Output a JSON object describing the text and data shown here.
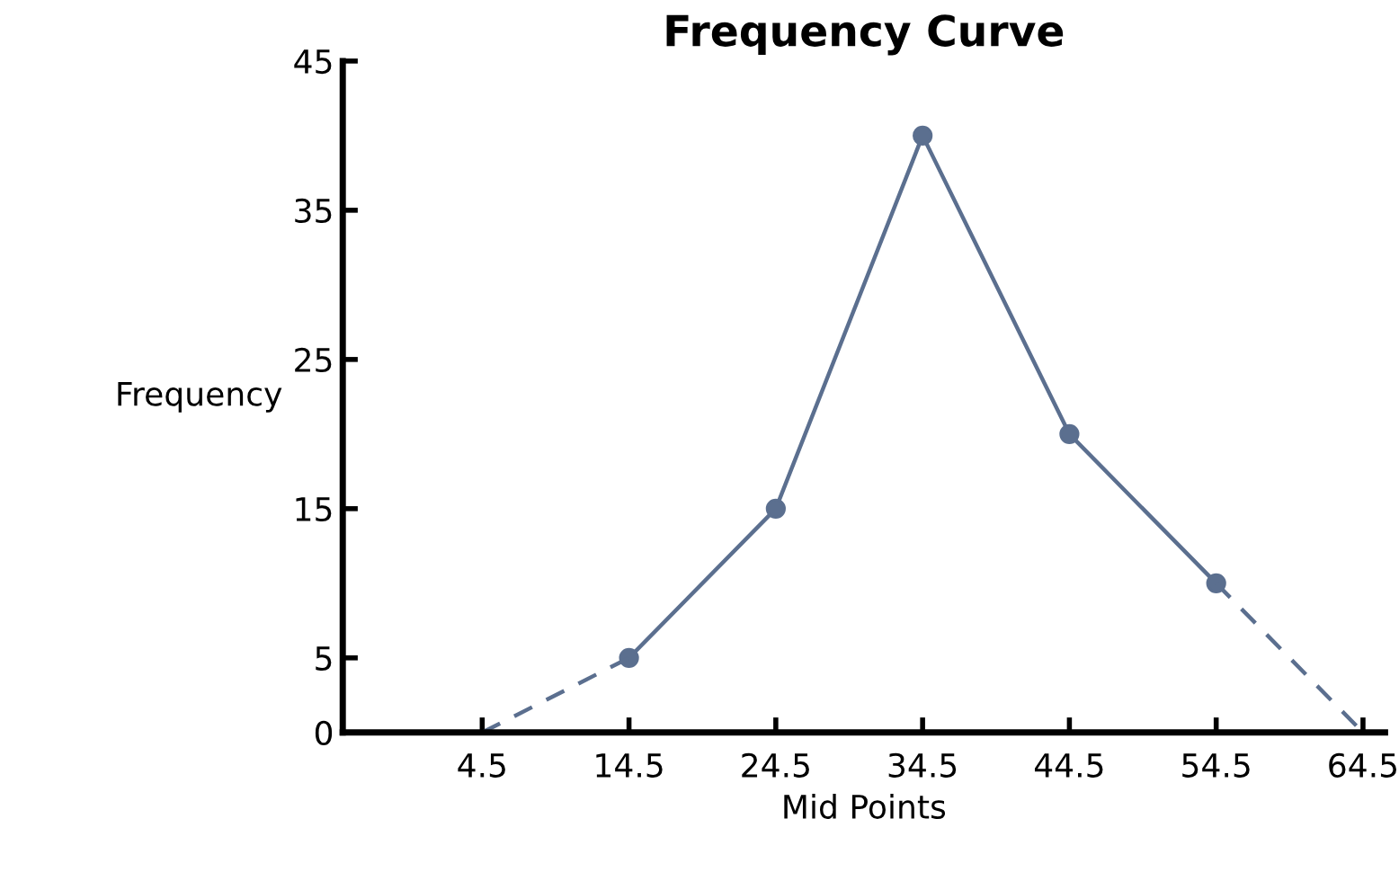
{
  "chart_data": {
    "type": "line",
    "title": "Frequency Curve",
    "xlabel": "Mid Points",
    "ylabel": "Frequency",
    "series": [
      {
        "x": [
          14.5,
          24.5,
          34.5,
          44.5,
          54.5
        ],
        "values": [
          5,
          15,
          40,
          20,
          10
        ],
        "color": "#5b6f8f",
        "marker": "circle",
        "line_style": "solid"
      },
      {
        "x": [
          4.5,
          14.5
        ],
        "values": [
          0,
          5
        ],
        "color": "#5b6f8f",
        "marker": "none",
        "line_style": "dashed"
      },
      {
        "x": [
          54.5,
          64.5
        ],
        "values": [
          10,
          0
        ],
        "color": "#5b6f8f",
        "marker": "none",
        "line_style": "dashed"
      }
    ],
    "xlim": [
      -5,
      66
    ],
    "xticks": [
      4.5,
      14.5,
      24.5,
      34.5,
      44.5,
      54.5,
      64.5
    ],
    "ylim": [
      0,
      45
    ],
    "yticks": [
      0,
      5,
      15,
      25,
      35,
      45
    ],
    "grid": false,
    "legend": false
  }
}
